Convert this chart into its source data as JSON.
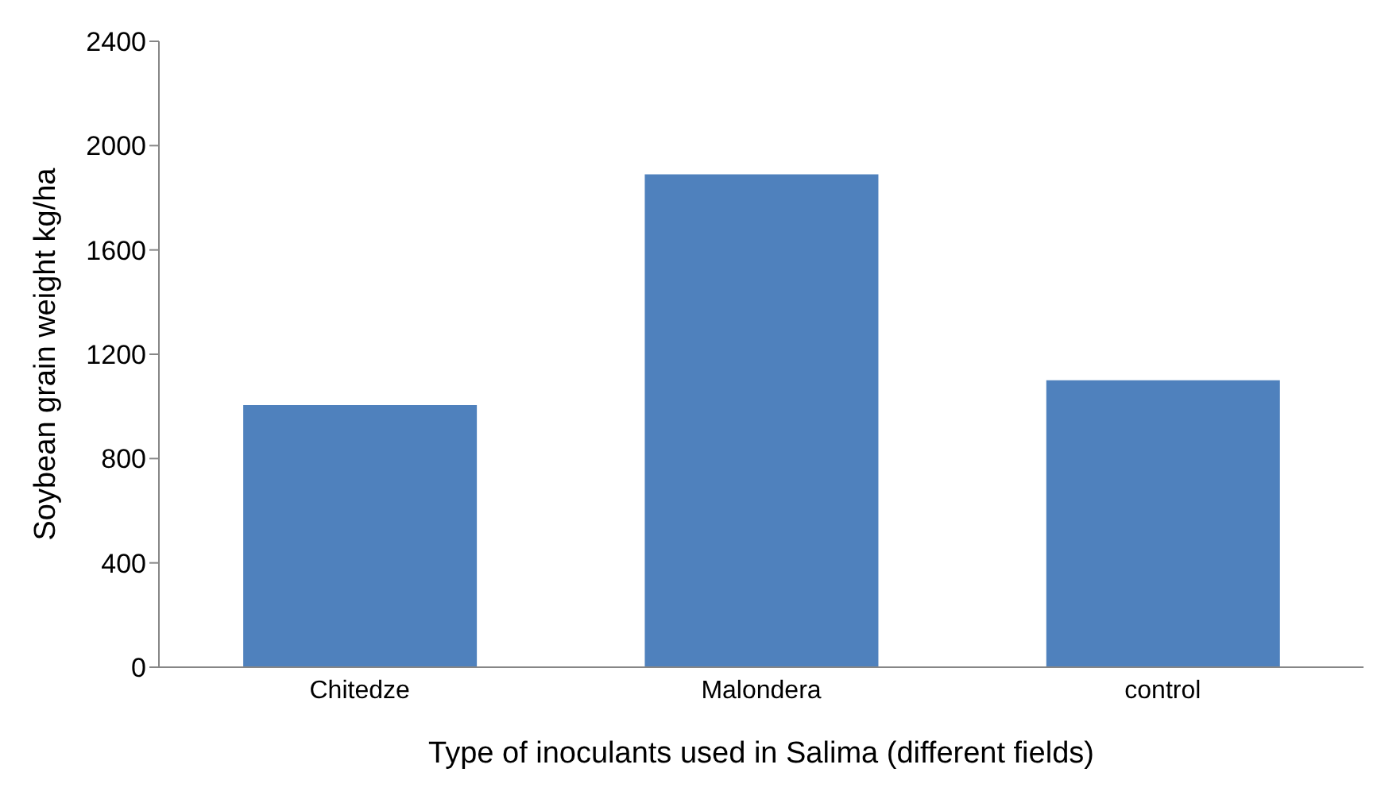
{
  "chart_data": {
    "type": "bar",
    "categories": [
      "Chitedze",
      "Malondera",
      "control"
    ],
    "values": [
      1005,
      1890,
      1100
    ],
    "color": "#4f81bd",
    "xlabel": "Type of inoculants used in Salima (different fields)",
    "ylabel": "Soybean grain weight kg/ha",
    "ylim": [
      0,
      2400
    ],
    "yticks": [
      0,
      400,
      800,
      1200,
      1600,
      2000,
      2400
    ],
    "grid": false,
    "legend": false
  }
}
